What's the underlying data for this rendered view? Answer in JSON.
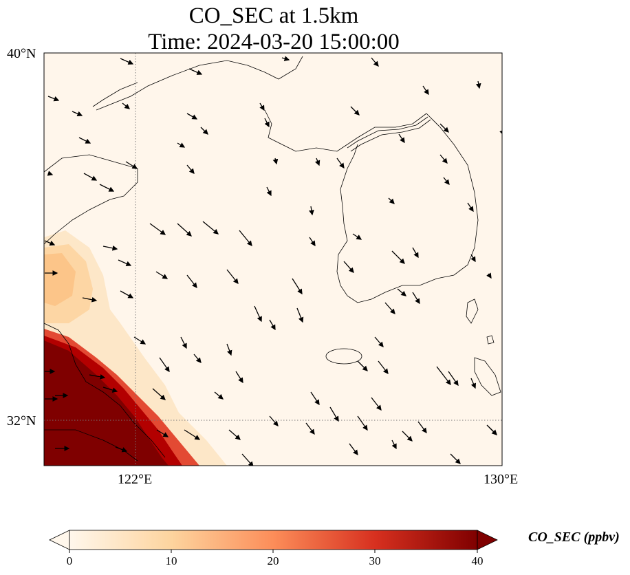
{
  "title": {
    "line1": "CO_SEC at 1.5km",
    "line2": "Time: 2024-03-20 15:00:00"
  },
  "axes": {
    "lat_labels": [
      "40°N",
      "32°N"
    ],
    "lon_labels": [
      "122°E",
      "130°E"
    ]
  },
  "colorbar": {
    "label": "CO_SEC (ppbv)",
    "ticks": [
      "0",
      "10",
      "20",
      "30",
      "40"
    ],
    "range": [
      0,
      40
    ],
    "colormap": "OrRd",
    "extend": "both"
  },
  "colors": {
    "background_low": "#fff7ec",
    "light": "#fdd49e",
    "mid": "#fc8d59",
    "high": "#d7301f",
    "max": "#7f0000"
  },
  "map_extent": {
    "lon": [
      120,
      130
    ],
    "lat": [
      31,
      40
    ]
  },
  "gridlines": {
    "lons": [
      122
    ],
    "lats": [
      32
    ],
    "style": "dotted"
  }
}
